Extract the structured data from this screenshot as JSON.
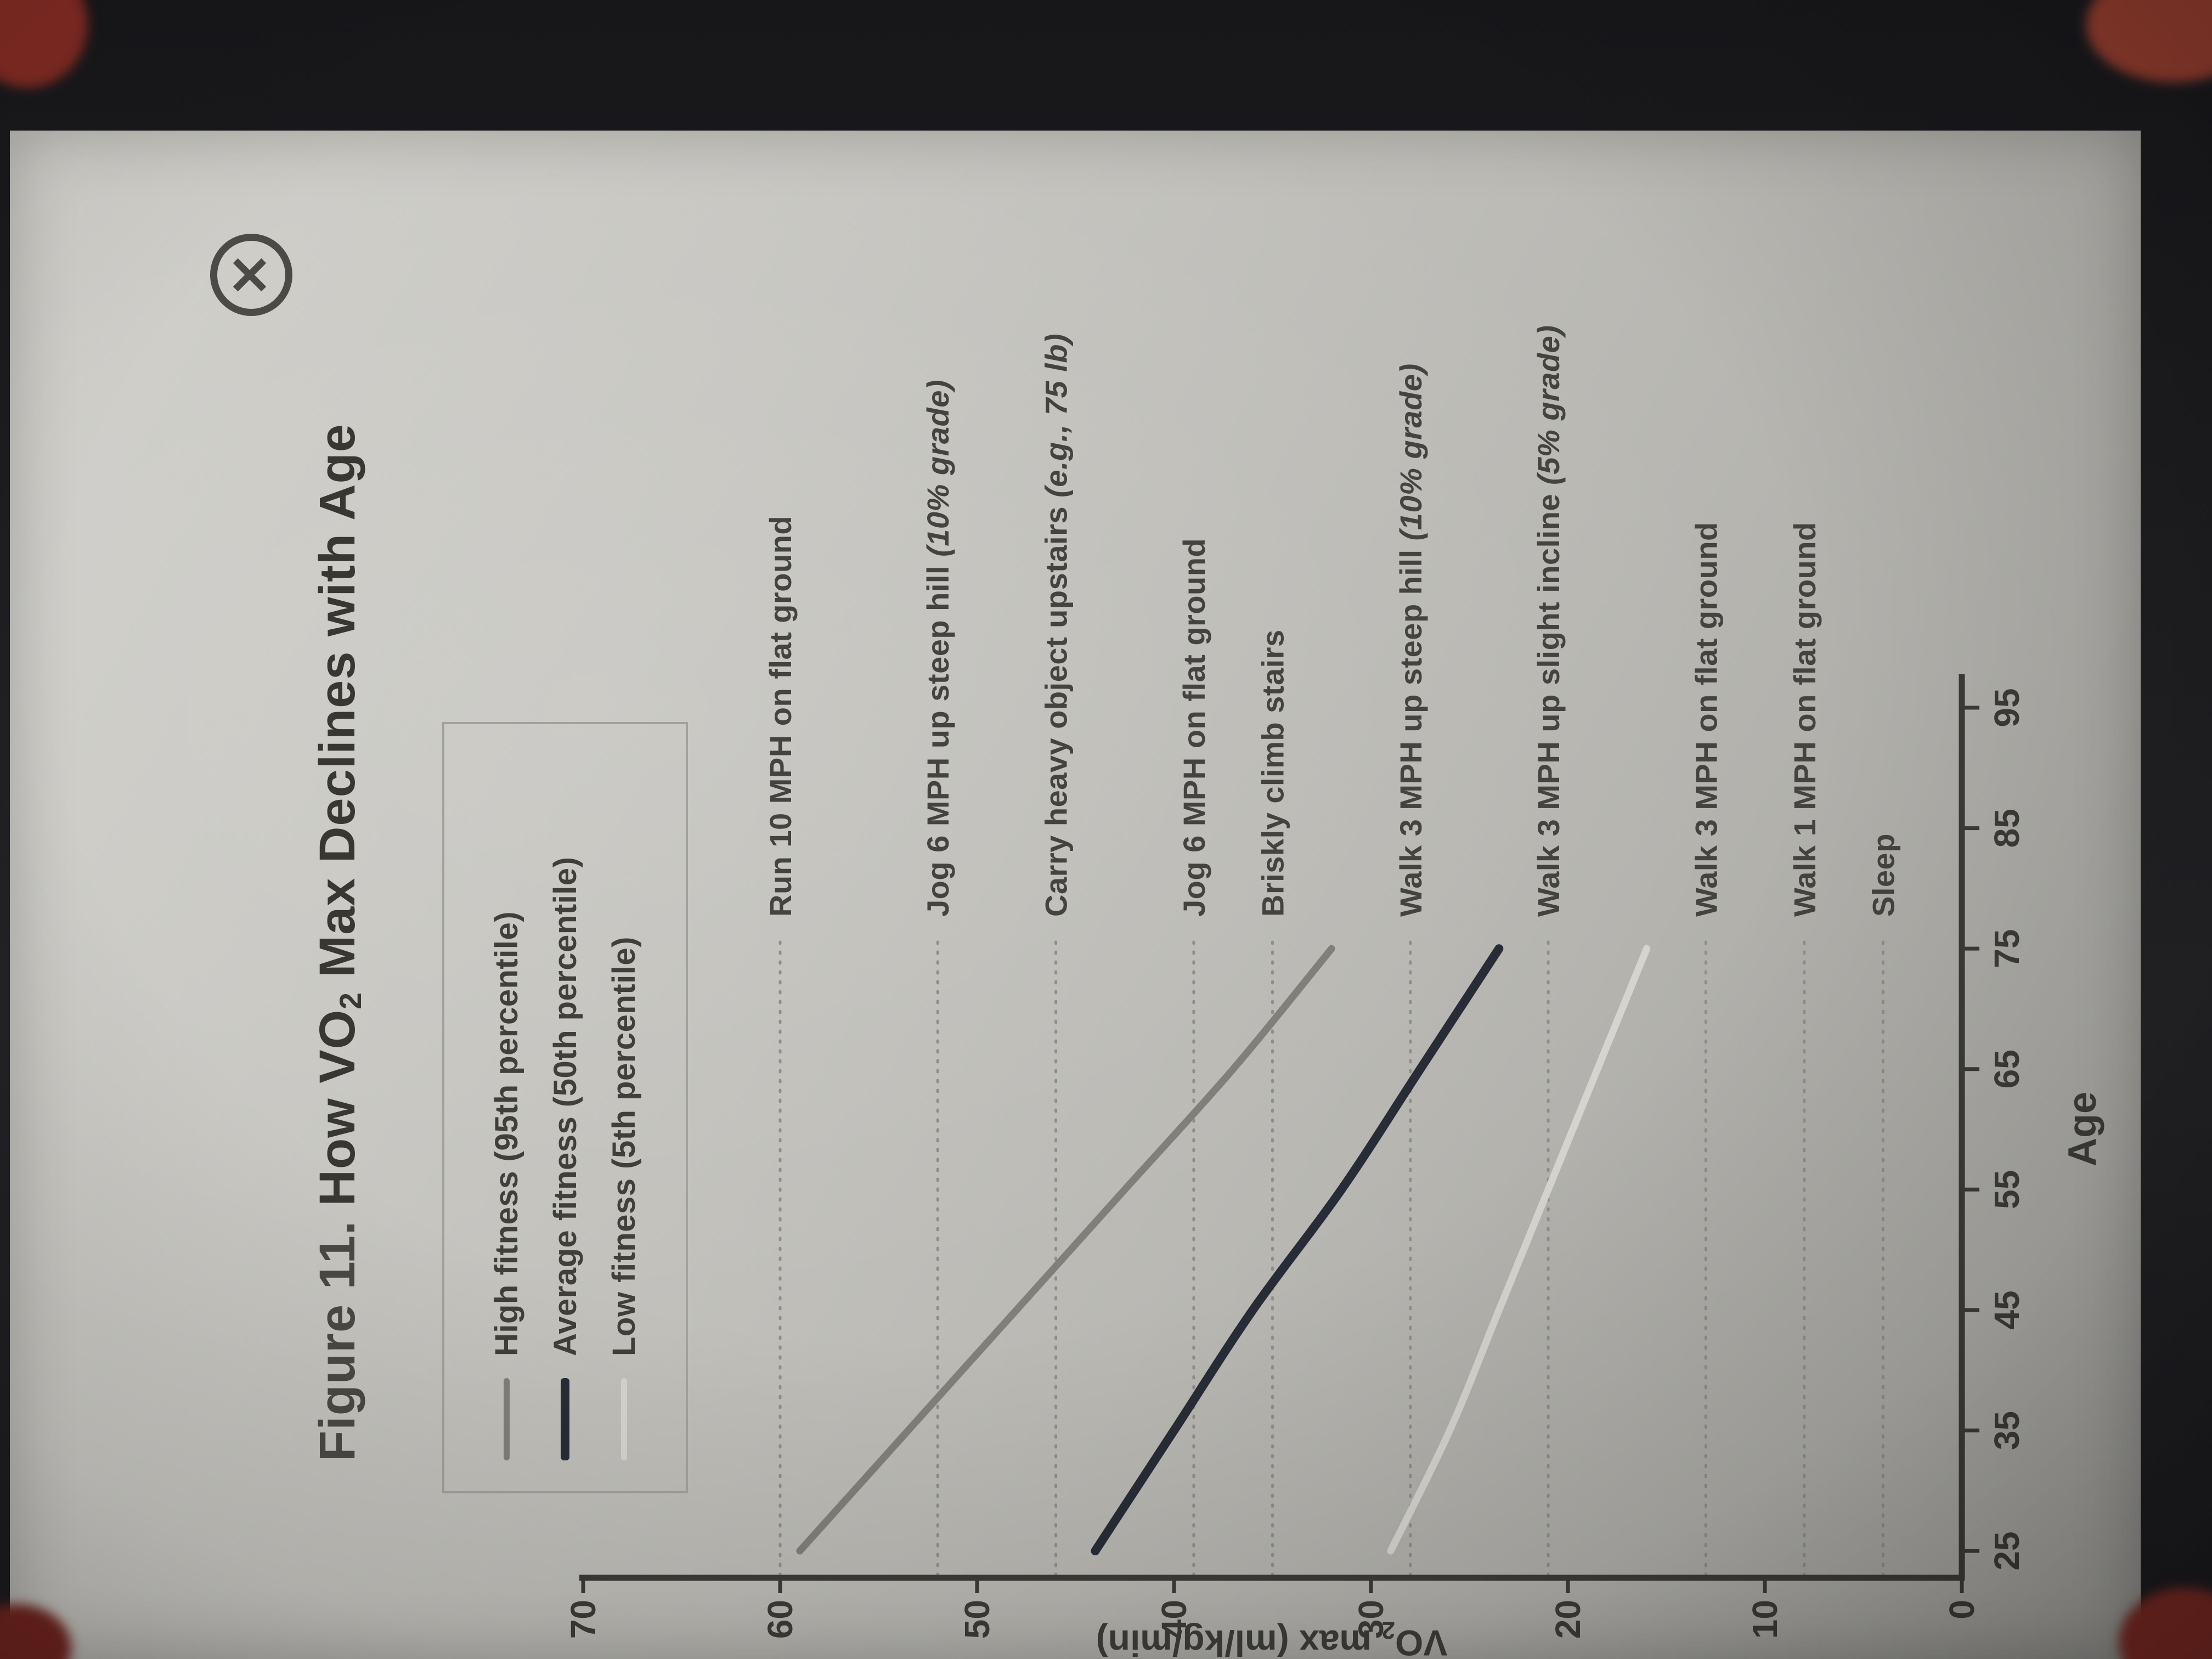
{
  "title": {
    "prefix": "Figure 11.",
    "a": "How VO",
    "sub": "2",
    "b": " Max Declines with Age"
  },
  "close": {
    "glyph": "✕"
  },
  "legend": {
    "items": [
      {
        "label": "High fitness (95th percentile)",
        "color": "#807f7a"
      },
      {
        "label": "Average fitness (50th percentile)",
        "color": "#272c36"
      },
      {
        "label": "Low fitness (5th percentile)",
        "color": "#d5d4cf"
      }
    ]
  },
  "chart_data": {
    "type": "line",
    "title": "Figure 11. How VO2 Max Declines with Age",
    "xlabel": "Age",
    "ylabel": "VO2 max (ml/kg/min)",
    "ylabel_parts": {
      "a": "VO",
      "sub": "2",
      "b": " max (ml/kg/min)"
    },
    "xlim": [
      25,
      95
    ],
    "ylim": [
      0,
      70
    ],
    "xticks": [
      25,
      35,
      45,
      55,
      65,
      75,
      85,
      95
    ],
    "yticks": [
      0,
      10,
      20,
      30,
      40,
      50,
      60,
      70
    ],
    "grid": false,
    "legend_position": "top-left-inside",
    "x": [
      25,
      35,
      45,
      55,
      65,
      75
    ],
    "series": [
      {
        "name": "High fitness (95th percentile)",
        "values": [
          59,
          53.5,
          48,
          42.5,
          37,
          32
        ],
        "color": "#807f7a"
      },
      {
        "name": "Average fitness (50th percentile)",
        "values": [
          44,
          40,
          36,
          31.5,
          27.5,
          23.5
        ],
        "color": "#272c36"
      },
      {
        "name": "Low fitness (5th percentile)",
        "values": [
          29,
          26,
          23.5,
          21,
          18.5,
          16
        ],
        "color": "#d5d4cf"
      }
    ],
    "reference_lines": [
      {
        "value": 60,
        "text": "Run 10 MPH on flat ground",
        "note": ""
      },
      {
        "value": 52,
        "text": "Jog 6 MPH up steep hill ",
        "note": "(10% grade)"
      },
      {
        "value": 46,
        "text": "Carry heavy object upstairs ",
        "note": "(e.g., 75 lb)"
      },
      {
        "value": 39,
        "text": "Jog 6 MPH on flat ground",
        "note": ""
      },
      {
        "value": 35,
        "text": "Briskly climb stairs",
        "note": ""
      },
      {
        "value": 28,
        "text": "Walk 3 MPH up steep hill ",
        "note": "(10% grade)"
      },
      {
        "value": 21,
        "text": "Walk 3 MPH up slight incline ",
        "note": "(5% grade)"
      },
      {
        "value": 13,
        "text": "Walk 3 MPH on flat ground",
        "note": ""
      },
      {
        "value": 8,
        "text": "Walk 1 MPH on flat ground",
        "note": ""
      },
      {
        "value": 4,
        "text": "Sleep",
        "note": ""
      }
    ]
  }
}
